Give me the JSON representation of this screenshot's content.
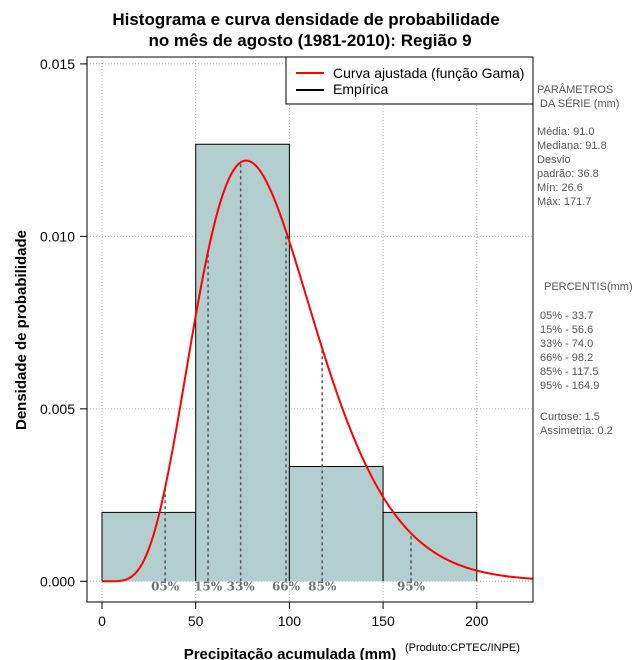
{
  "chart_data": {
    "type": "bar",
    "title_line1": "Histograma e curva densidade de probabilidade",
    "title_line2": "no mês de agosto (1981-2010): Região 9",
    "xlabel": "Precipitação acumulada (mm)",
    "ylabel": "Densidade de probabilidade",
    "credit": "(Produto:CPTEC/INPE)",
    "xlim": [
      -8,
      230
    ],
    "ylim": [
      -0.0006,
      0.0152
    ],
    "xticks": [
      0,
      50,
      100,
      150,
      200
    ],
    "xtick_labels": [
      "0",
      "50",
      "100",
      "150",
      "200"
    ],
    "yticks": [
      0.0,
      0.005,
      0.01,
      0.015
    ],
    "ytick_labels": [
      "0.000",
      "0.005",
      "0.010",
      "0.015"
    ],
    "grid": true,
    "bins": [
      {
        "from": 0,
        "to": 50,
        "density": 0.002
      },
      {
        "from": 50,
        "to": 100,
        "density": 0.01267
      },
      {
        "from": 100,
        "to": 150,
        "density": 0.00333
      },
      {
        "from": 150,
        "to": 200,
        "density": 0.002
      }
    ],
    "bar_color": "#b3cece",
    "curve": {
      "name": "Curva ajustada (função Gama)",
      "distribution": "gamma",
      "shape": 6.7,
      "scale": 13.5,
      "color": "#ff0000"
    },
    "legend": {
      "placement": "top-right",
      "entries": [
        {
          "label": "Curva ajustada (função Gama)",
          "color": "#ff0000"
        },
        {
          "label": "Empírica",
          "color": "#000000"
        }
      ]
    },
    "percentiles": [
      {
        "label": "05%",
        "x": 33.7
      },
      {
        "label": "15%",
        "x": 56.6
      },
      {
        "label": "33%",
        "x": 74.0
      },
      {
        "label": "66%",
        "x": 98.2
      },
      {
        "label": "85%",
        "x": 117.5
      },
      {
        "label": "95%",
        "x": 164.9
      }
    ]
  },
  "side_panel": {
    "params_title": "PARÂMETROS",
    "params_subtitle": "DA SÉRIE (mm)",
    "media": "Média:  91.0",
    "mediana": "Mediana:  91.8",
    "desvio_1": "Desvio",
    "desvio_2": "padrão:  36.8",
    "min": "Mín:  26.6",
    "max": "Máx:  171.7",
    "percentis_title": "PERCENTIS(mm)",
    "p05": "05% -  33.7",
    "p15": "15% -  56.6",
    "p33": "33% -  74.0",
    "p66": "66% -  98.2",
    "p85": "85% -  117.5",
    "p95": "95% -  164.9",
    "curtose": "Curtose:  1.5",
    "assimetria": "Assimetria:  0.2"
  }
}
